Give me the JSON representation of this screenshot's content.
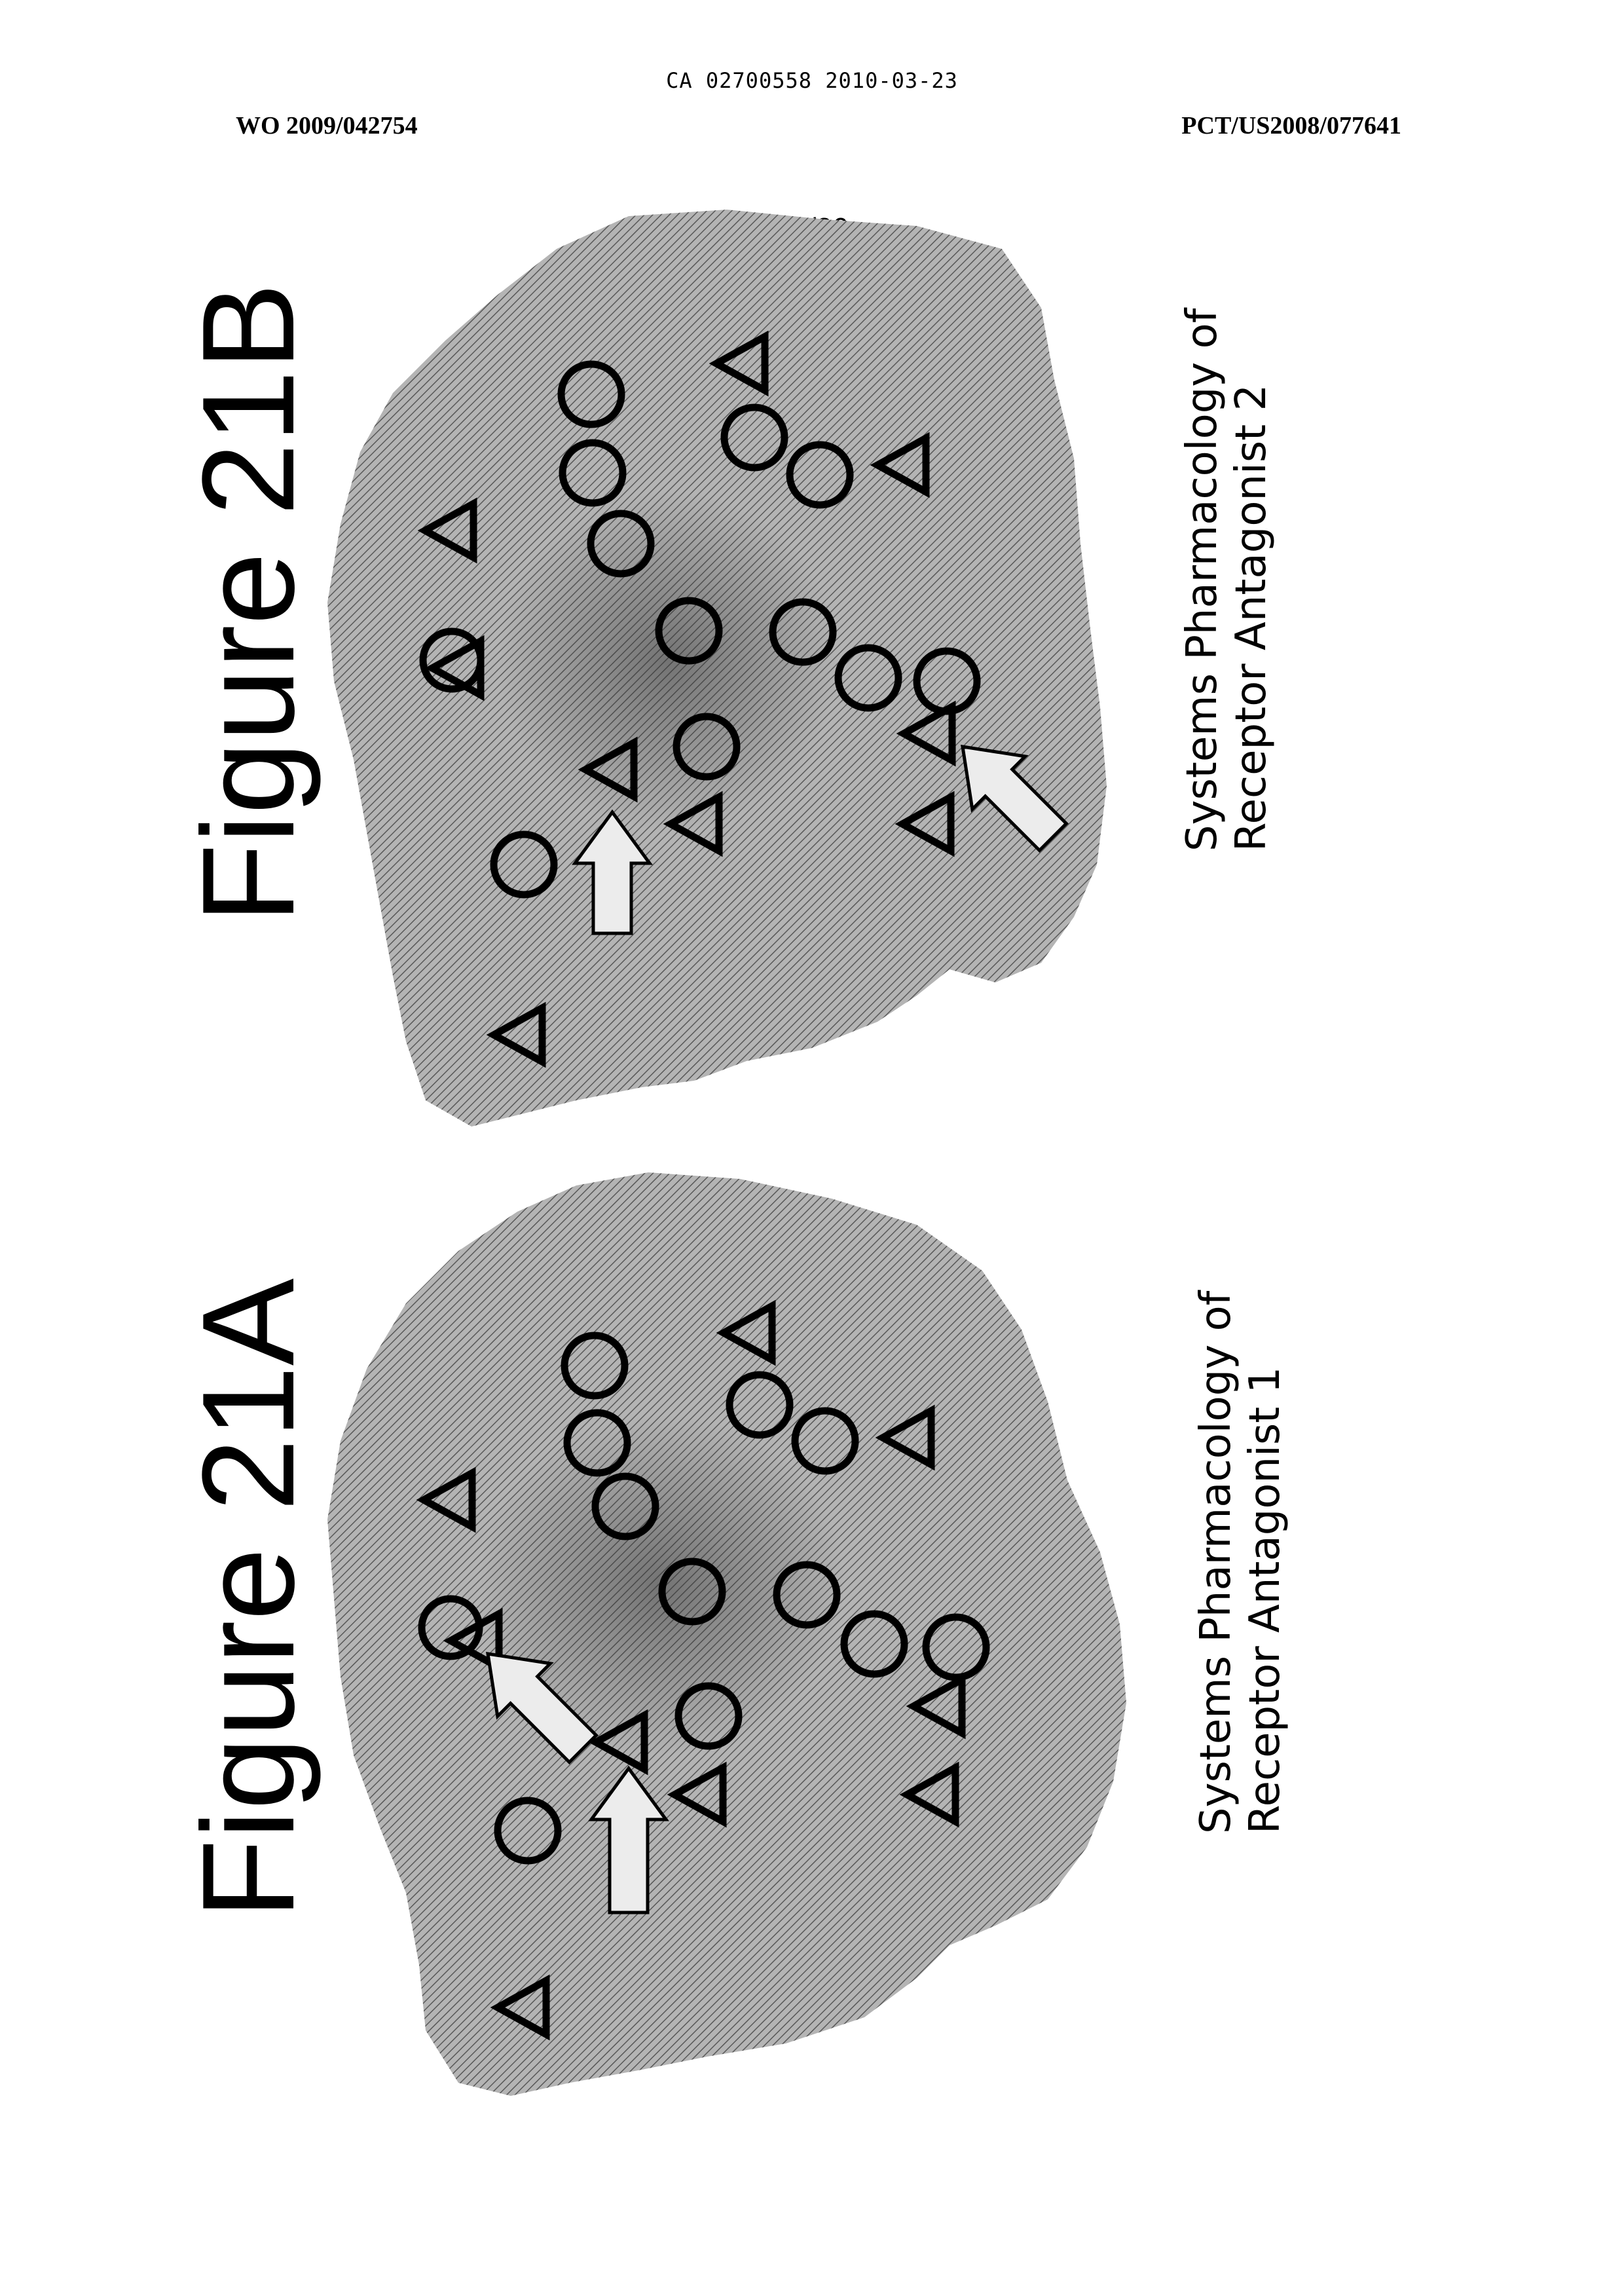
{
  "header": {
    "ca_number": "CA 02700558 2010-03-23",
    "publication_number": "WO 2009/042754",
    "application_number": "PCT/US2008/077641",
    "page_number": "22/26"
  },
  "figures": [
    {
      "title": "Figure 21A",
      "caption_line1": "Systems Pharmacology of",
      "caption_line2": "Receptor Antagonist 1"
    },
    {
      "title": "Figure 21B",
      "caption_line1": "Systems Pharmacology of",
      "caption_line2": "Receptor Antagonist 2"
    }
  ],
  "colors": {
    "network_fill": "#9a9a9a",
    "marker_stroke": "#000000",
    "arrow_fill": "#ececec"
  }
}
